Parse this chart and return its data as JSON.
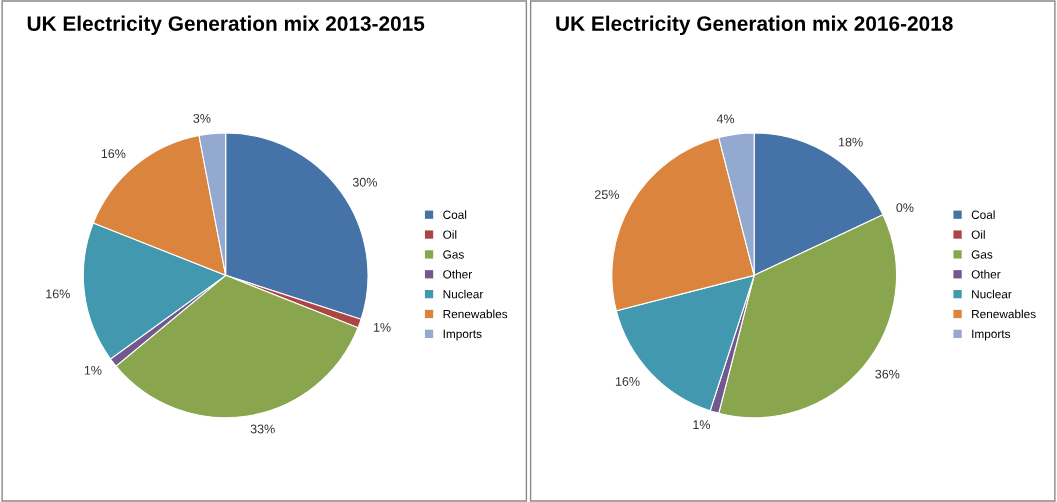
{
  "chart_data": [
    {
      "type": "pie",
      "title": "UK Electricity Generation mix 2013-2015",
      "categories": [
        "Coal",
        "Oil",
        "Gas",
        "Other",
        "Nuclear",
        "Renewables",
        "Imports"
      ],
      "values": [
        30,
        1,
        33,
        1,
        16,
        16,
        3
      ],
      "value_labels": [
        "30%",
        "1%",
        "33%",
        "1%",
        "16%",
        "16%",
        "3%"
      ],
      "colors": [
        "#4572a7",
        "#aa4643",
        "#89a54e",
        "#71588f",
        "#4198af",
        "#db843d",
        "#93a9cf"
      ],
      "legend": "right"
    },
    {
      "type": "pie",
      "title": "UK Electricity Generation mix 2016-2018",
      "categories": [
        "Coal",
        "Oil",
        "Gas",
        "Other",
        "Nuclear",
        "Renewables",
        "Imports"
      ],
      "values": [
        18,
        0,
        36,
        1,
        16,
        25,
        4
      ],
      "value_labels": [
        "18%",
        "0%",
        "36%",
        "1%",
        "16%",
        "25%",
        "4%"
      ],
      "colors": [
        "#4572a7",
        "#aa4643",
        "#89a54e",
        "#71588f",
        "#4198af",
        "#db843d",
        "#93a9cf"
      ],
      "legend": "right"
    }
  ]
}
